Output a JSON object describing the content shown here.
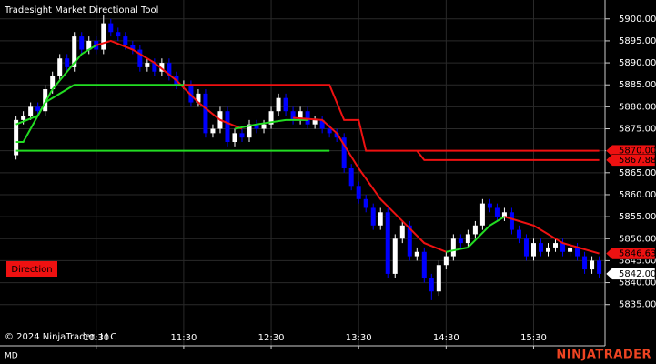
{
  "chart_data": {
    "type": "candlestick",
    "title": "Tradesight Market Directional Tool",
    "button": "Direction",
    "copyright": "© 2024 NinjaTrader, LLC",
    "instrument": "MD",
    "brand": "NINJATRADER",
    "up_color": "#ffffff",
    "down_color": "#0000ff",
    "grid": true,
    "x": [
      "09:35",
      "09:40",
      "09:45",
      "09:50",
      "09:55",
      "10:00",
      "10:05",
      "10:10",
      "10:15",
      "10:20",
      "10:25",
      "10:30",
      "10:35",
      "10:40",
      "10:45",
      "10:50",
      "10:55",
      "11:00",
      "11:05",
      "11:10",
      "11:15",
      "11:20",
      "11:25",
      "11:30",
      "11:35",
      "11:40",
      "11:45",
      "11:50",
      "11:55",
      "12:00",
      "12:05",
      "12:10",
      "12:15",
      "12:20",
      "12:25",
      "12:30",
      "12:35",
      "12:40",
      "12:45",
      "12:50",
      "12:55",
      "13:00",
      "13:05",
      "13:10",
      "13:15",
      "13:20",
      "13:25",
      "13:30",
      "13:35",
      "13:40",
      "13:45",
      "13:50",
      "13:55",
      "14:00",
      "14:05",
      "14:10",
      "14:15",
      "14:20",
      "14:25",
      "14:30",
      "14:35",
      "14:40",
      "14:45",
      "14:50",
      "14:55",
      "15:00",
      "15:05",
      "15:10",
      "15:15",
      "15:20",
      "15:25",
      "15:30",
      "15:35",
      "15:40",
      "15:45",
      "15:50",
      "15:55",
      "16:00",
      "16:05",
      "16:10",
      "16:15"
    ],
    "open": [
      5869,
      5877,
      5878,
      5880,
      5879,
      5884,
      5887,
      5891,
      5889,
      5896,
      5893,
      5895,
      5893,
      5899,
      5897,
      5896,
      5894,
      5893,
      5889,
      5890,
      5888,
      5890,
      5887,
      5885,
      5885,
      5881,
      5883,
      5874,
      5875,
      5879,
      5872,
      5874,
      5873,
      5876,
      5875,
      5876,
      5879,
      5882,
      5879,
      5877,
      5879,
      5876,
      5877,
      5875,
      5874,
      5873,
      5866,
      5862,
      5859,
      5857,
      5853,
      5856,
      5842,
      5850,
      5853,
      5846,
      5847,
      5841,
      5838,
      5844,
      5846,
      5850,
      5849,
      5851,
      5853,
      5858,
      5857,
      5855,
      5856,
      5852,
      5850,
      5846,
      5849,
      5847,
      5848,
      5849,
      5847,
      5848,
      5846,
      5843,
      5845
    ],
    "high": [
      5878,
      5879,
      5881,
      5881,
      5885,
      5888,
      5892,
      5892,
      5897,
      5897,
      5896,
      5896,
      5901,
      5900,
      5898,
      5897,
      5895,
      5894,
      5891,
      5891,
      5891,
      5891,
      5888,
      5886,
      5886,
      5884,
      5884,
      5876,
      5880,
      5880,
      5875,
      5875,
      5877,
      5877,
      5877,
      5880,
      5883,
      5883,
      5880,
      5880,
      5880,
      5878,
      5878,
      5876,
      5875,
      5874,
      5867,
      5863,
      5860,
      5858,
      5857,
      5857,
      5851,
      5854,
      5854,
      5848,
      5848,
      5842,
      5845,
      5847,
      5851,
      5851,
      5852,
      5854,
      5859,
      5859,
      5858,
      5857,
      5857,
      5853,
      5851,
      5850,
      5850,
      5849,
      5850,
      5850,
      5849,
      5849,
      5847,
      5846,
      5846
    ],
    "low": [
      5868,
      5876,
      5877,
      5878,
      5878,
      5883,
      5886,
      5888,
      5888,
      5892,
      5892,
      5892,
      5892,
      5896,
      5895,
      5893,
      5892,
      5888,
      5888,
      5887,
      5887,
      5886,
      5884,
      5884,
      5880,
      5880,
      5873,
      5873,
      5874,
      5871,
      5871,
      5872,
      5872,
      5874,
      5874,
      5875,
      5878,
      5878,
      5876,
      5876,
      5875,
      5875,
      5874,
      5873,
      5872,
      5865,
      5861,
      5858,
      5856,
      5852,
      5852,
      5841,
      5841,
      5849,
      5845,
      5845,
      5840,
      5836,
      5837,
      5843,
      5845,
      5848,
      5848,
      5850,
      5852,
      5856,
      5854,
      5854,
      5851,
      5849,
      5845,
      5845,
      5846,
      5846,
      5847,
      5846,
      5846,
      5845,
      5842,
      5842,
      5841
    ],
    "close": [
      5877,
      5878,
      5880,
      5879,
      5884,
      5887,
      5891,
      5889,
      5896,
      5893,
      5895,
      5893,
      5899,
      5897,
      5896,
      5894,
      5893,
      5889,
      5890,
      5888,
      5890,
      5887,
      5885,
      5885,
      5881,
      5883,
      5874,
      5875,
      5879,
      5872,
      5874,
      5873,
      5876,
      5875,
      5876,
      5879,
      5882,
      5879,
      5877,
      5879,
      5876,
      5877,
      5875,
      5874,
      5873,
      5866,
      5862,
      5859,
      5857,
      5853,
      5856,
      5842,
      5850,
      5853,
      5846,
      5847,
      5841,
      5838,
      5844,
      5846,
      5850,
      5849,
      5851,
      5853,
      5858,
      5857,
      5855,
      5856,
      5852,
      5850,
      5846,
      5849,
      5847,
      5848,
      5849,
      5847,
      5848,
      5846,
      5843,
      5845,
      5842
    ],
    "lines": [
      {
        "color": "#22dd22",
        "x": [
          "09:35",
          "09:50",
          "10:00",
          "10:10",
          "10:20",
          "10:30"
        ],
        "values": [
          5876,
          5878,
          5884,
          5888,
          5892,
          5894
        ]
      },
      {
        "color": "#ee1111",
        "x": [
          "10:30",
          "10:40",
          "10:55",
          "11:10",
          "11:25",
          "11:40",
          "11:55",
          "12:10"
        ],
        "values": [
          5894,
          5895,
          5893,
          5890,
          5886,
          5881,
          5877,
          5875
        ]
      },
      {
        "color": "#22dd22",
        "x": [
          "12:05",
          "12:20",
          "12:40",
          "12:55"
        ],
        "values": [
          5875,
          5876,
          5877,
          5877
        ]
      },
      {
        "color": "#ee1111",
        "x": [
          "12:45",
          "13:05",
          "13:15",
          "13:30",
          "13:45",
          "14:00",
          "14:15",
          "14:30"
        ],
        "values": [
          5877.5,
          5877,
          5874,
          5866,
          5859,
          5854,
          5849,
          5847
        ]
      },
      {
        "color": "#22dd22",
        "x": [
          "14:30",
          "14:45",
          "15:00",
          "15:10"
        ],
        "values": [
          5847,
          5848,
          5853,
          5855
        ]
      },
      {
        "color": "#ee1111",
        "x": [
          "15:10",
          "15:30",
          "15:50",
          "16:15"
        ],
        "values": [
          5855,
          5853,
          5849,
          5846.63
        ]
      },
      {
        "color": "#22dd22",
        "x": [
          "09:35",
          "13:10"
        ],
        "values": [
          5870,
          5870
        ]
      },
      {
        "color": "#22dd22",
        "x": [
          "09:35",
          "09:40",
          "09:55",
          "10:05",
          "10:15",
          "11:30"
        ],
        "values": [
          5872,
          5872,
          5881,
          5883,
          5885,
          5885
        ]
      },
      {
        "color": "#ee1111",
        "x": [
          "11:30",
          "13:10",
          "13:20",
          "13:30",
          "13:35",
          "16:15"
        ],
        "values": [
          5885,
          5885,
          5877,
          5877,
          5870,
          5870
        ]
      },
      {
        "color": "#ee1111",
        "x": [
          "14:10",
          "14:15",
          "16:15"
        ],
        "values": [
          5870,
          5867.88,
          5867.88
        ]
      }
    ],
    "price_markers": [
      {
        "value": 5870,
        "label": "5870.00",
        "color": "#ee1111",
        "text_color": "#000000"
      },
      {
        "value": 5867.88,
        "label": "5867.88",
        "color": "#ee1111",
        "text_color": "#000000"
      },
      {
        "value": 5846.63,
        "label": "5846.63",
        "color": "#ee1111",
        "text_color": "#000000"
      },
      {
        "value": 5842,
        "label": "5842.00",
        "color": "#ffffff",
        "text_color": "#000000"
      }
    ],
    "xlim": [
      "09:24",
      "16:19"
    ],
    "xticks": [
      "10:30",
      "11:30",
      "12:30",
      "13:30",
      "14:30",
      "15:30"
    ],
    "ylim": [
      5830.8,
      5904.3
    ],
    "yticks": [
      {
        "value": 5835,
        "label": "5835.00"
      },
      {
        "value": 5840,
        "label": "5840.00"
      },
      {
        "value": 5845,
        "label": "5845.00"
      },
      {
        "value": 5850,
        "label": "5850.00"
      },
      {
        "value": 5855,
        "label": "5855.00"
      },
      {
        "value": 5860,
        "label": "5860.00"
      },
      {
        "value": 5865,
        "label": "5865.00"
      },
      {
        "value": 5870,
        "label": "5870.00"
      },
      {
        "value": 5875,
        "label": "5875.00"
      },
      {
        "value": 5880,
        "label": "5880.00"
      },
      {
        "value": 5885,
        "label": "5885.00"
      },
      {
        "value": 5890,
        "label": "5890.00"
      },
      {
        "value": 5895,
        "label": "5895.00"
      },
      {
        "value": 5900,
        "label": "5900.00"
      }
    ]
  }
}
